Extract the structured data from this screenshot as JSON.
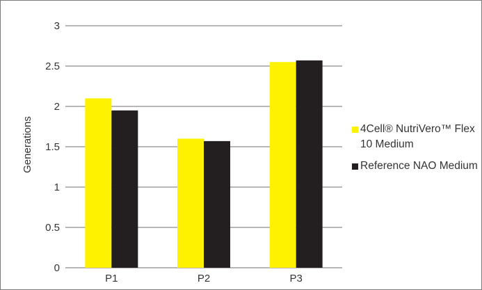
{
  "chart_data": {
    "type": "bar",
    "title": "",
    "xlabel": "",
    "ylabel": "Generations",
    "ylim": [
      0,
      3
    ],
    "yticks": [
      "0",
      "0.5",
      "1",
      "1.5",
      "2",
      "2.5",
      "3"
    ],
    "categories": [
      "P1",
      "P2",
      "P3"
    ],
    "series": [
      {
        "name": "4Cell® NutriVero™ Flex 10 Medium",
        "color": "#FFF200",
        "values": [
          2.1,
          1.6,
          2.55
        ]
      },
      {
        "name": "Reference NAO Medium",
        "color": "#231F20",
        "values": [
          1.95,
          1.57,
          2.57
        ]
      }
    ],
    "grid": true,
    "legend_position": "right"
  }
}
